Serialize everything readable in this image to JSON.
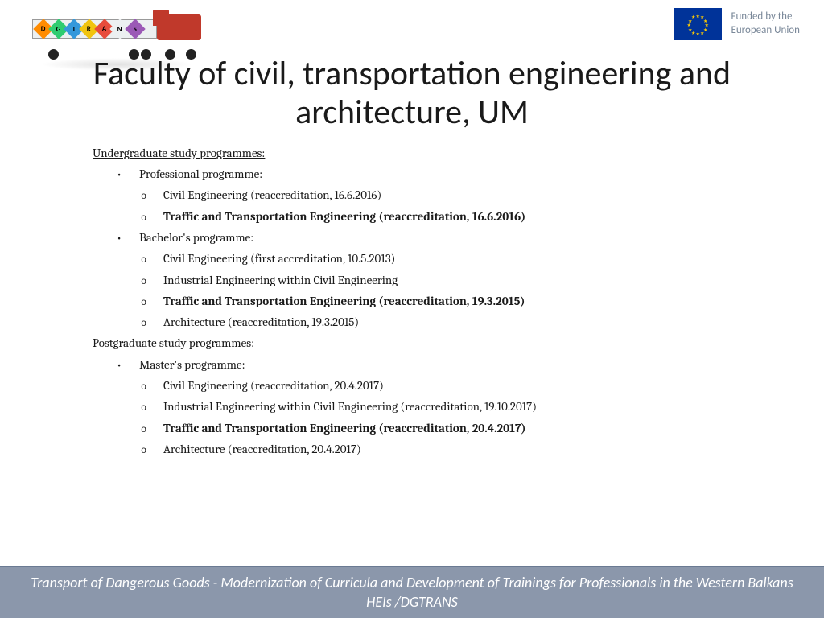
{
  "header": {
    "truck_diamonds": [
      {
        "letter": "D",
        "color": "#ff8c00"
      },
      {
        "letter": "G",
        "color": "#2ecc71"
      },
      {
        "letter": "T",
        "color": "#3498db"
      },
      {
        "letter": "R",
        "color": "#f1c40f"
      },
      {
        "letter": "A",
        "color": "#e74c3c"
      },
      {
        "letter": "N",
        "color": "#ecf0f1"
      },
      {
        "letter": "S",
        "color": "#9b59b6"
      }
    ],
    "eu_text_line1": "Funded by the",
    "eu_text_line2": "European Union"
  },
  "title": "Faculty of civil, transportation engineering and architecture, UM",
  "sections": {
    "undergrad_heading": "Undergraduate study programmes:",
    "professional_label": "Professional programme:",
    "prof_items": [
      {
        "text": "Civil Engineering (reaccreditation, 16.6.2016)",
        "bold": false
      },
      {
        "text": "Traffic and Transportation Engineering (reaccreditation, 16.6.2016)",
        "bold": true
      }
    ],
    "bachelor_label": "Bachelor's programme:",
    "bachelor_items": [
      {
        "text": "Civil Engineering (first accreditation, 10.5.2013)",
        "bold": false
      },
      {
        "text": "Industrial Engineering within Civil Engineering",
        "bold": false
      },
      {
        "text": "Traffic and Transportation Engineering (reaccreditation, 19.3.2015)",
        "bold": true
      },
      {
        "text": "Architecture (reaccreditation, 19.3.2015)",
        "bold": false
      }
    ],
    "postgrad_heading": "Postgraduate study programmes",
    "postgrad_colon": ":",
    "master_label": "Master's programme:",
    "master_items": [
      {
        "text": "Civil Engineering (reaccreditation, 20.4.2017)",
        "bold": false
      },
      {
        "text": "Industrial Engineering within Civil Engineering (reaccreditation, 19.10.2017)",
        "bold": false
      },
      {
        "text": "Traffic and Transportation Engineering (reaccreditation, 20.4.2017)",
        "bold": true
      },
      {
        "text": "Architecture (reaccreditation, 20.4.2017)",
        "bold": false
      }
    ]
  },
  "footer": "Transport of Dangerous Goods - Modernization of Curricula and Development of Trainings for Professionals in the Western Balkans HEIs /DGTRANS",
  "colors": {
    "footer_bg": "#8b97ab",
    "eu_blue": "#003399",
    "eu_gold": "#ffcc00"
  }
}
